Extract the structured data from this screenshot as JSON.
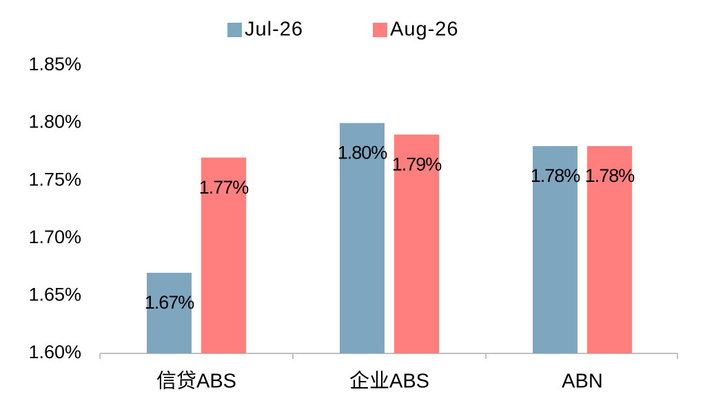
{
  "chart_data": {
    "type": "bar",
    "categories": [
      "信贷ABS",
      "企业ABS",
      "ABN"
    ],
    "series": [
      {
        "name": "Jul-26",
        "color": "#7fa6bf",
        "values": [
          1.67,
          1.8,
          1.78
        ],
        "value_labels": [
          "1.67%",
          "1.80%",
          "1.78%"
        ]
      },
      {
        "name": "Aug-26",
        "color": "#ff7f7f",
        "values": [
          1.77,
          1.79,
          1.78
        ],
        "value_labels": [
          "1.77%",
          "1.79%",
          "1.78%"
        ]
      }
    ],
    "ylim": [
      1.6,
      1.85
    ],
    "yticks": [
      {
        "value": 1.6,
        "label": "1.60%"
      },
      {
        "value": 1.65,
        "label": "1.65%"
      },
      {
        "value": 1.7,
        "label": "1.70%"
      },
      {
        "value": 1.75,
        "label": "1.75%"
      },
      {
        "value": 1.8,
        "label": "1.80%"
      },
      {
        "value": 1.85,
        "label": "1.85%"
      }
    ],
    "grid": false,
    "legend": "top"
  }
}
